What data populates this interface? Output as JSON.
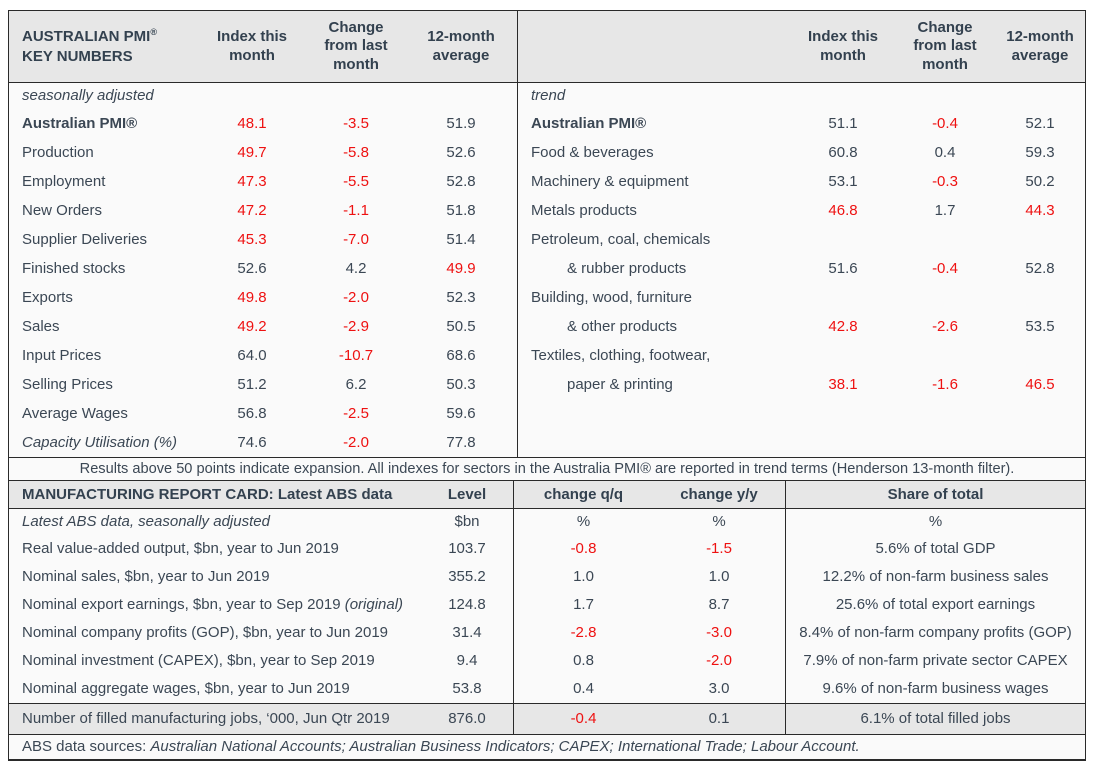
{
  "colors": {
    "text_dark": "#3b4754",
    "text_red": "#ee1111",
    "header_bg": "#e7e7e7",
    "body_bg": "#fafafa",
    "border": "#2a2a2a"
  },
  "pmi_table": {
    "title_line1": "AUSTRALIAN PMI",
    "title_sup": "®",
    "title_line2": "KEY NUMBERS",
    "col_headers": [
      "Index this month",
      "Change from last month",
      "12-month average"
    ],
    "left_section_label": "seasonally adjusted",
    "right_section_label": "trend",
    "left_rows": [
      {
        "label": "Australian PMI®",
        "bold": true,
        "values": [
          "48.1",
          "-3.5",
          "51.9"
        ],
        "red": [
          true,
          true,
          false
        ]
      },
      {
        "label": "Production",
        "values": [
          "49.7",
          "-5.8",
          "52.6"
        ],
        "red": [
          true,
          true,
          false
        ]
      },
      {
        "label": "Employment",
        "values": [
          "47.3",
          "-5.5",
          "52.8"
        ],
        "red": [
          true,
          true,
          false
        ]
      },
      {
        "label": "New Orders",
        "values": [
          "47.2",
          "-1.1",
          "51.8"
        ],
        "red": [
          true,
          true,
          false
        ]
      },
      {
        "label": "Supplier Deliveries",
        "values": [
          "45.3",
          "-7.0",
          "51.4"
        ],
        "red": [
          true,
          true,
          false
        ]
      },
      {
        "label": "Finished stocks",
        "values": [
          "52.6",
          "4.2",
          "49.9"
        ],
        "red": [
          false,
          false,
          true
        ]
      },
      {
        "label": "Exports",
        "values": [
          "49.8",
          "-2.0",
          "52.3"
        ],
        "red": [
          true,
          true,
          false
        ]
      },
      {
        "label": "Sales",
        "values": [
          "49.2",
          "-2.9",
          "50.5"
        ],
        "red": [
          true,
          true,
          false
        ]
      },
      {
        "label": "Input Prices",
        "values": [
          "64.0",
          "-10.7",
          "68.6"
        ],
        "red": [
          false,
          true,
          false
        ]
      },
      {
        "label": "Selling Prices",
        "values": [
          "51.2",
          "6.2",
          "50.3"
        ],
        "red": [
          false,
          false,
          false
        ]
      },
      {
        "label": "Average Wages",
        "values": [
          "56.8",
          "-2.5",
          "59.6"
        ],
        "red": [
          false,
          true,
          false
        ]
      },
      {
        "label": "Capacity Utilisation (%)",
        "italic": true,
        "values": [
          "74.6",
          "-2.0",
          "77.8"
        ],
        "red": [
          false,
          true,
          false
        ]
      }
    ],
    "right_rows": [
      {
        "label": "Australian PMI®",
        "bold": true,
        "values": [
          "51.1",
          "-0.4",
          "52.1"
        ],
        "red": [
          false,
          true,
          false
        ]
      },
      {
        "label": "Food & beverages",
        "values": [
          "60.8",
          "0.4",
          "59.3"
        ],
        "red": [
          false,
          false,
          false
        ]
      },
      {
        "label": "Machinery & equipment",
        "values": [
          "53.1",
          "-0.3",
          "50.2"
        ],
        "red": [
          false,
          true,
          false
        ]
      },
      {
        "label": "Metals products",
        "values": [
          "46.8",
          "1.7",
          "44.3"
        ],
        "red": [
          true,
          false,
          true
        ]
      },
      {
        "label": "Petroleum, coal, chemicals",
        "values": null
      },
      {
        "label": "& rubber products",
        "indent": true,
        "values": [
          "51.6",
          "-0.4",
          "52.8"
        ],
        "red": [
          false,
          true,
          false
        ]
      },
      {
        "label": "Building, wood, furniture",
        "values": null
      },
      {
        "label": "& other products",
        "indent": true,
        "values": [
          "42.8",
          "-2.6",
          "53.5"
        ],
        "red": [
          true,
          true,
          false
        ]
      },
      {
        "label": "Textiles, clothing, footwear,",
        "values": null
      },
      {
        "label": "paper & printing",
        "indent": true,
        "values": [
          "38.1",
          "-1.6",
          "46.5"
        ],
        "red": [
          true,
          true,
          true
        ]
      }
    ]
  },
  "note": "Results above 50 points indicate expansion. All indexes for sectors in the Australia PMI® are reported in trend terms (Henderson 13-month filter).",
  "report_card": {
    "title": "MANUFACTURING REPORT CARD: Latest ABS data",
    "col_headers": [
      "Level",
      "change q/q",
      "change y/y",
      "Share of total"
    ],
    "rows": [
      {
        "label": "Latest ABS data, seasonally adjusted",
        "italic": true,
        "unit": true,
        "values": [
          "$bn",
          "%",
          "%",
          "%"
        ],
        "red": [
          false,
          false,
          false,
          false
        ]
      },
      {
        "label": "Real value-added output, $bn, year to Jun 2019",
        "values": [
          "103.7",
          "-0.8",
          "-1.5",
          "5.6% of total GDP"
        ],
        "red": [
          false,
          true,
          true,
          false
        ]
      },
      {
        "label": "Nominal sales, $bn, year to Jun 2019",
        "values": [
          "355.2",
          "1.0",
          "1.0",
          "12.2% of non-farm business sales"
        ],
        "red": [
          false,
          false,
          false,
          false
        ]
      },
      {
        "label": "Nominal export earnings, $bn, year to Sep 2019 ",
        "label_italic": "(original)",
        "values": [
          "124.8",
          "1.7",
          "8.7",
          "25.6% of total export earnings"
        ],
        "red": [
          false,
          false,
          false,
          false
        ]
      },
      {
        "label": "Nominal company profits (GOP), $bn, year to Jun 2019",
        "values": [
          "31.4",
          "-2.8",
          "-3.0",
          "8.4% of non-farm company profits (GOP)"
        ],
        "red": [
          false,
          true,
          true,
          false
        ]
      },
      {
        "label": "Nominal investment (CAPEX), $bn, year to Sep 2019",
        "values": [
          "9.4",
          "0.8",
          "-2.0",
          "7.9% of non-farm private sector CAPEX"
        ],
        "red": [
          false,
          false,
          true,
          false
        ]
      },
      {
        "label": "Nominal aggregate wages, $bn, year to Jun 2019",
        "values": [
          "53.8",
          "0.4",
          "3.0",
          "9.6% of non-farm business wages"
        ],
        "red": [
          false,
          false,
          false,
          false
        ]
      },
      {
        "label": "Number of filled manufacturing jobs, ‘000, Jun Qtr 2019",
        "highlight": true,
        "values": [
          "876.0",
          "-0.4",
          "0.1",
          "6.1% of total filled jobs"
        ],
        "red": [
          false,
          true,
          false,
          false
        ]
      }
    ]
  },
  "footer": {
    "prefix": "ABS data sources: ",
    "sources": "Australian National Accounts; Australian Business Indicators; CAPEX; International Trade; Labour Account."
  }
}
